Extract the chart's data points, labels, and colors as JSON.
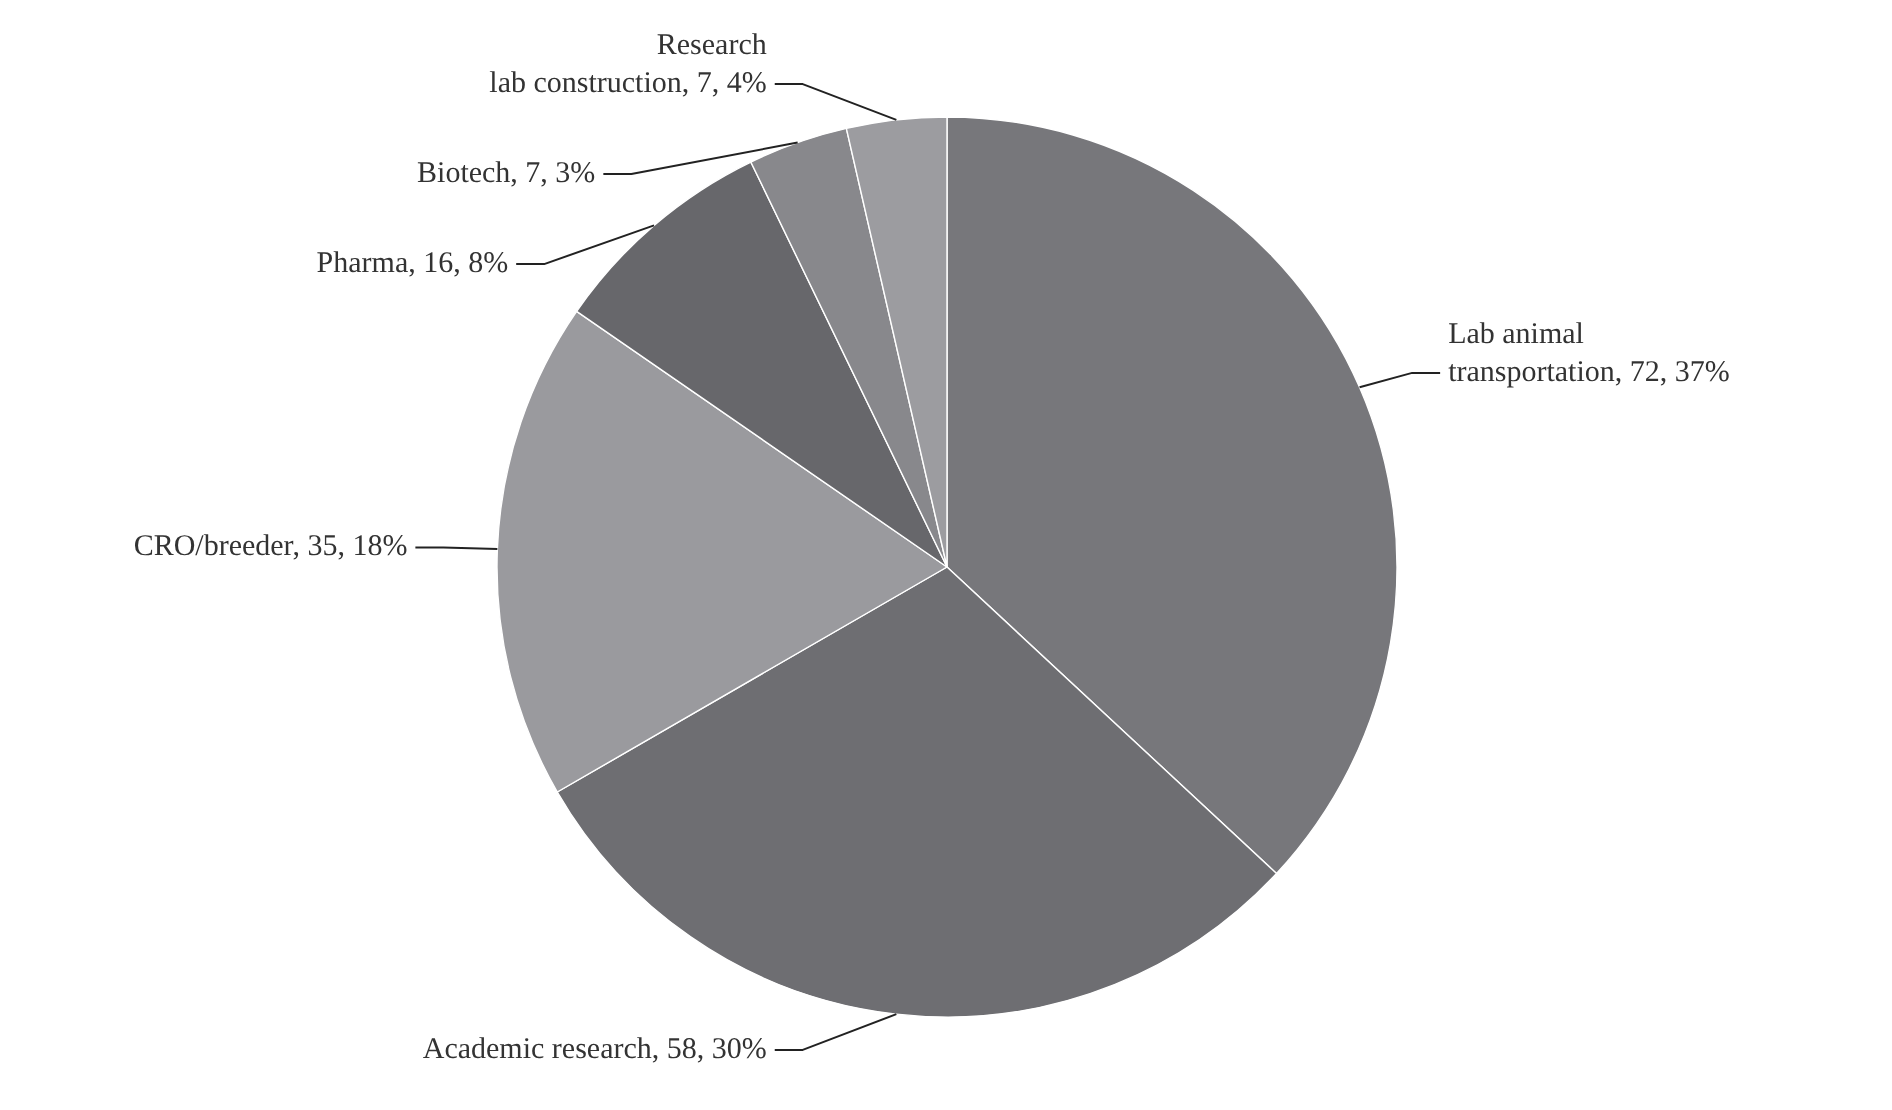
{
  "chart_data": {
    "type": "pie",
    "categories": [
      "Lab animal transportation",
      "Academic research",
      "CRO/breeder",
      "Pharma",
      "Biotech",
      "Research lab construction"
    ],
    "values": [
      72,
      58,
      35,
      16,
      7,
      7
    ],
    "value_labels": [
      "72, 37%",
      "58, 30%",
      "35, 18%",
      "16, 8%",
      "7, 3%",
      "7, 4%"
    ],
    "colors": [
      "#77777b",
      "#6e6e72",
      "#9a9a9e",
      "#67676b",
      "#88888c",
      "#9c9ca0"
    ],
    "legend": false
  }
}
